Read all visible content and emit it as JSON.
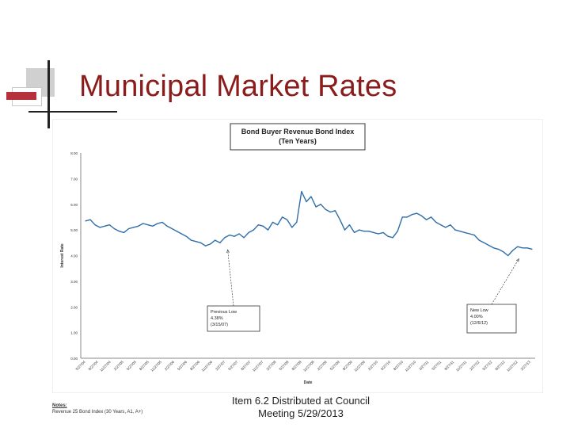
{
  "slide": {
    "title": "Municipal Market Rates",
    "footer": "Item 6.2 Distributed at Council\nMeeting 5/29/2013",
    "notes_label": "Notes:",
    "notes_text": "Revenue 25 Bond Index (30 Years, A1, A+)"
  },
  "colors": {
    "title": "#8b1c1c",
    "line": "#2f6ea8",
    "accent": "#b5303a"
  },
  "chart_data": {
    "type": "line",
    "title": "Bond Buyer Revenue Bond Index\n(Ten Years)",
    "xlabel": "Date",
    "ylabel": "Interest Rate",
    "ylim": [
      0,
      8
    ],
    "yticks": [
      "0.00",
      "1.00",
      "2.00",
      "3.00",
      "4.00",
      "5.00",
      "6.00",
      "7.00",
      "8.00"
    ],
    "grid": false,
    "xticks": [
      "5/27/04",
      "8/27/04",
      "11/27/04",
      "2/27/05",
      "5/27/05",
      "8/27/05",
      "11/27/05",
      "2/27/06",
      "5/27/06",
      "8/27/06",
      "11/27/06",
      "2/27/07",
      "5/27/07",
      "8/27/07",
      "11/27/07",
      "2/27/08",
      "5/27/08",
      "8/27/08",
      "11/27/08",
      "2/27/09",
      "5/27/09",
      "8/27/09",
      "11/27/09",
      "2/27/10",
      "5/27/10",
      "8/27/10",
      "11/27/10",
      "2/27/11",
      "5/27/11",
      "8/27/11",
      "11/27/11",
      "2/27/12",
      "5/27/12",
      "8/27/12",
      "11/27/12",
      "2/27/13"
    ],
    "series": [
      {
        "values": [
          5.35,
          5.4,
          5.2,
          5.1,
          5.15,
          5.2,
          5.05,
          4.95,
          4.9,
          5.05,
          5.1,
          5.15,
          5.25,
          5.2,
          5.15,
          5.25,
          5.3,
          5.15,
          5.05,
          4.95,
          4.85,
          4.75,
          4.6,
          4.55,
          4.5,
          4.38,
          4.45,
          4.6,
          4.5,
          4.7,
          4.8,
          4.75,
          4.85,
          4.7,
          4.9,
          5.0,
          5.2,
          5.15,
          5.0,
          5.3,
          5.2,
          5.5,
          5.4,
          5.1,
          5.3,
          6.5,
          6.1,
          6.3,
          5.9,
          6.0,
          5.8,
          5.7,
          5.75,
          5.4,
          5.0,
          5.2,
          4.9,
          5.0,
          4.95,
          4.95,
          4.9,
          4.85,
          4.9,
          4.75,
          4.7,
          4.95,
          5.5,
          5.5,
          5.6,
          5.65,
          5.55,
          5.4,
          5.5,
          5.3,
          5.2,
          5.1,
          5.2,
          5.0,
          4.95,
          4.9,
          4.85,
          4.8,
          4.6,
          4.5,
          4.4,
          4.3,
          4.25,
          4.15,
          4.0,
          4.2,
          4.35,
          4.3,
          4.3,
          4.25
        ]
      }
    ],
    "annotations": [
      {
        "text": "Previous Low\n4.38%\n(3/15/07)",
        "x": "3/15/07",
        "y": 4.38
      },
      {
        "text": "New Low\n4.00%\n(12/6/12)",
        "x": "12/6/12",
        "y": 4.0
      }
    ]
  }
}
